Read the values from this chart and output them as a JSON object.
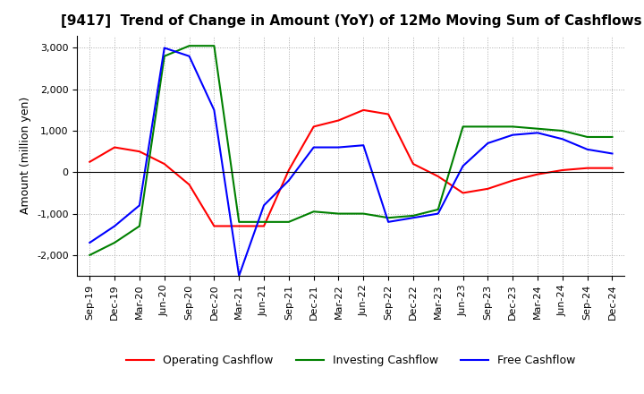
{
  "title": "[9417]  Trend of Change in Amount (YoY) of 12Mo Moving Sum of Cashflows",
  "ylabel": "Amount (million yen)",
  "ylim": [
    -2500,
    3300
  ],
  "yticks": [
    -2000,
    -1000,
    0,
    1000,
    2000,
    3000
  ],
  "x_labels": [
    "Sep-19",
    "Dec-19",
    "Mar-20",
    "Jun-20",
    "Sep-20",
    "Dec-20",
    "Mar-21",
    "Jun-21",
    "Sep-21",
    "Dec-21",
    "Mar-22",
    "Jun-22",
    "Sep-22",
    "Dec-22",
    "Mar-23",
    "Jun-23",
    "Sep-23",
    "Dec-23",
    "Mar-24",
    "Jun-24",
    "Sep-24",
    "Dec-24"
  ],
  "operating": [
    250,
    600,
    500,
    200,
    -300,
    -1300,
    -1300,
    -1300,
    50,
    1100,
    1250,
    1500,
    1400,
    200,
    -100,
    -500,
    -400,
    -200,
    -50,
    50,
    100,
    100
  ],
  "investing": [
    -2000,
    -1700,
    -1300,
    2800,
    3050,
    3050,
    -1200,
    -1200,
    -1200,
    -950,
    -1000,
    -1000,
    -1100,
    -1050,
    -900,
    1100,
    1100,
    1100,
    1050,
    1000,
    850,
    850
  ],
  "free": [
    -1700,
    -1300,
    -800,
    3000,
    2800,
    1500,
    -2500,
    -800,
    -200,
    600,
    600,
    650,
    -1200,
    -1100,
    -1000,
    150,
    700,
    900,
    950,
    800,
    550,
    450
  ],
  "operating_color": "#ff0000",
  "investing_color": "#008000",
  "free_color": "#0000ff",
  "background_color": "#ffffff",
  "grid_color": "#aaaaaa"
}
